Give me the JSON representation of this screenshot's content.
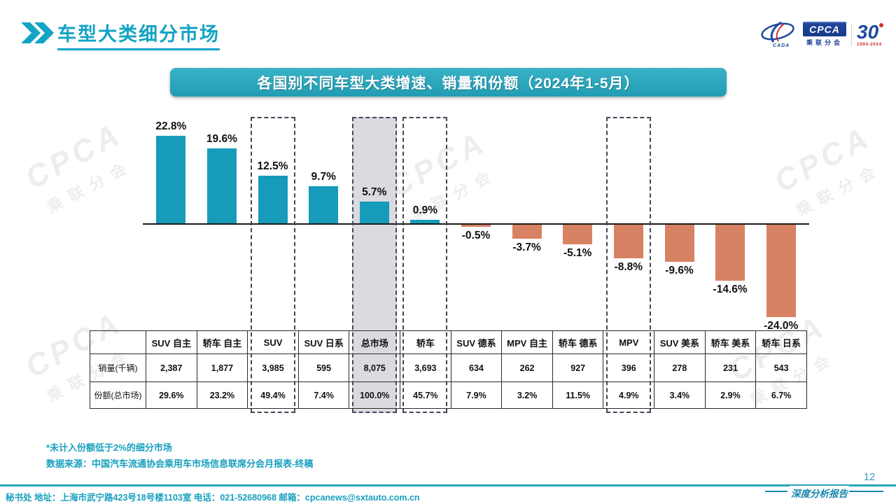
{
  "page": {
    "title": "车型大类细分市场",
    "page_number": "12",
    "report_label": "深度分析报告"
  },
  "logo": {
    "cpca_text": "CPCA",
    "cpca_sub": "乘联分会",
    "cada_text": "CADA",
    "anniversary_number": "30",
    "anniversary_years": "1994-2024"
  },
  "banner": {
    "title": "各国别不同车型大类增速、销量和份额（2024年1-5月）"
  },
  "chart_data": {
    "type": "bar",
    "title": "各国别不同车型大类增速、销量和份额（2024年1-5月）",
    "categories": [
      "SUV 自主",
      "轿车 自主",
      "SUV",
      "SUV 日系",
      "总市场",
      "轿车",
      "SUV 德系",
      "MPV 自主",
      "轿车 德系",
      "MPV",
      "SUV 美系",
      "轿车 美系",
      "轿车 日系"
    ],
    "series": [
      {
        "name": "增速(%)",
        "values": [
          22.8,
          19.6,
          12.5,
          9.7,
          5.7,
          0.9,
          -0.5,
          -3.7,
          -5.1,
          -8.8,
          -9.6,
          -14.6,
          -24.0
        ]
      }
    ],
    "value_labels": [
      "22.8%",
      "19.6%",
      "12.5%",
      "9.7%",
      "5.7%",
      "0.9%",
      "-0.5%",
      "-3.7%",
      "-5.1%",
      "-8.8%",
      "-9.6%",
      "-14.6%",
      "-24.0%"
    ],
    "ylim": [
      -26,
      25
    ],
    "grid": false,
    "legend": "none",
    "colors": {
      "positive": "#179bba",
      "negative": "#d78263",
      "highlight_fill": "#dbdae0"
    },
    "highlighted_columns": [
      {
        "category": "SUV",
        "index": 2,
        "gray_fill": false
      },
      {
        "category": "总市场",
        "index": 4,
        "gray_fill": true
      },
      {
        "category": "轿车",
        "index": 5,
        "gray_fill": false
      },
      {
        "category": "MPV",
        "index": 9,
        "gray_fill": false
      }
    ],
    "table": {
      "row_labels": [
        "销量(千辆)",
        "份额(总市场)"
      ],
      "rows": [
        [
          "2,387",
          "1,877",
          "3,985",
          "595",
          "8,075",
          "3,693",
          "634",
          "262",
          "927",
          "396",
          "278",
          "231",
          "543"
        ],
        [
          "29.6%",
          "23.2%",
          "49.4%",
          "7.4%",
          "100.0%",
          "45.7%",
          "7.9%",
          "3.2%",
          "11.5%",
          "4.9%",
          "3.4%",
          "2.9%",
          "6.7%"
        ]
      ]
    }
  },
  "footnotes": {
    "note1": "*未计入份额低于2%的细分市场",
    "note2": "数据来源：中国汽车流通协会乘用车市场信息联席分会月报表-终稿"
  },
  "footer": {
    "text": "秘书处   地址：上海市武宁路423号18号楼1103室   电话：021-52680968    邮箱：cpcanews@sxtauto.com.cn"
  },
  "watermark": {
    "text": "CPCA",
    "sub": "乘联分会"
  }
}
